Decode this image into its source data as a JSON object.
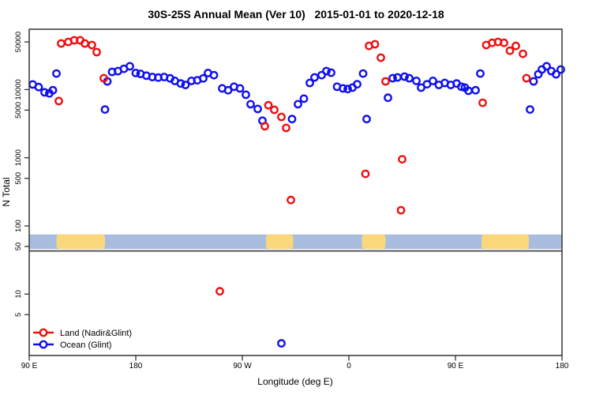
{
  "title": "30S-25S Annual Mean (Ver 10)   2015-01-01 to 2020-12-18",
  "chart_data": {
    "type": "scatter",
    "title": "30S-25S Annual Mean (Ver 10)   2015-01-01 to 2020-12-18",
    "xlabel": "Longitude (deg E)",
    "ylabel": "N Total",
    "y_scale": "log10",
    "ylim": [
      1.3,
      76000
    ],
    "grid": false,
    "legend_position": "bottom-left",
    "x_axis_span_deg": 450,
    "x_axis_note": "longitude axis wraps: 90E → 180 → 90W → 0 → 90E → 180",
    "x_ticks": [
      {
        "pos": 0,
        "label": "90 E"
      },
      {
        "pos": 90,
        "label": "180"
      },
      {
        "pos": 180,
        "label": "90 W"
      },
      {
        "pos": 270,
        "label": "0"
      },
      {
        "pos": 360,
        "label": "90 E"
      },
      {
        "pos": 450,
        "label": "180"
      }
    ],
    "y_ticks": [
      {
        "value": 50000,
        "label": "50000"
      },
      {
        "value": 10000,
        "label": "10000"
      },
      {
        "value": 5000,
        "label": "5000"
      },
      {
        "value": 1000,
        "label": "1000"
      },
      {
        "value": 500,
        "label": "500"
      },
      {
        "value": 100,
        "label": "100"
      },
      {
        "value": 50,
        "label": "50"
      },
      {
        "value": 10,
        "label": "10"
      },
      {
        "value": 5,
        "label": "5"
      }
    ],
    "legend": [
      {
        "label": "Land (Nadir&Glint)",
        "color": "#ee1111"
      },
      {
        "label": "Ocean (Glint)",
        "color": "#1111ee"
      }
    ],
    "map_strip": {
      "value_range": [
        46,
        75
      ],
      "ocean_color": "#a8bdde",
      "land_color": "#fbd77c",
      "land_segments_deg": [
        [
          23,
          64
        ],
        [
          200,
          223
        ],
        [
          281,
          301
        ],
        [
          382,
          422
        ]
      ],
      "land_segment_names": [
        "Australia",
        "South America",
        "Africa",
        "Australia (repeat)"
      ]
    },
    "divider_value": 43,
    "series": [
      {
        "name": "Ocean (Glint)",
        "color": "#1111ee",
        "points": [
          [
            3,
            11900
          ],
          [
            8,
            10900
          ],
          [
            13,
            9100
          ],
          [
            17,
            8800
          ],
          [
            20,
            9800
          ],
          [
            23,
            17200
          ],
          [
            64,
            5100
          ],
          [
            66,
            13200
          ],
          [
            70,
            18200
          ],
          [
            75,
            18700
          ],
          [
            80,
            20200
          ],
          [
            85,
            22000
          ],
          [
            90,
            17500
          ],
          [
            94,
            17000
          ],
          [
            99,
            16000
          ],
          [
            104,
            15300
          ],
          [
            109,
            15000
          ],
          [
            114,
            15300
          ],
          [
            119,
            14600
          ],
          [
            123,
            13400
          ],
          [
            128,
            12300
          ],
          [
            132,
            11700
          ],
          [
            137,
            13400
          ],
          [
            142,
            13700
          ],
          [
            147,
            14600
          ],
          [
            151,
            17500
          ],
          [
            156,
            16300
          ],
          [
            163,
            10400
          ],
          [
            168,
            9800
          ],
          [
            173,
            11000
          ],
          [
            178,
            10400
          ],
          [
            183,
            8400
          ],
          [
            187,
            6100
          ],
          [
            193,
            5200
          ],
          [
            197,
            3500
          ],
          [
            213,
            1.9
          ],
          [
            222,
            3700
          ],
          [
            227,
            6100
          ],
          [
            232,
            7350
          ],
          [
            237,
            12500
          ],
          [
            241,
            15100
          ],
          [
            247,
            16300
          ],
          [
            251,
            18700
          ],
          [
            255,
            17700
          ],
          [
            260,
            11000
          ],
          [
            265,
            10400
          ],
          [
            269,
            10200
          ],
          [
            273,
            10700
          ],
          [
            277,
            12000
          ],
          [
            282,
            17200
          ],
          [
            285,
            3700
          ],
          [
            303,
            7600
          ],
          [
            307,
            14700
          ],
          [
            311,
            15100
          ],
          [
            317,
            15500
          ],
          [
            321,
            14700
          ],
          [
            327,
            13400
          ],
          [
            331,
            10700
          ],
          [
            336,
            12000
          ],
          [
            341,
            13400
          ],
          [
            346,
            11700
          ],
          [
            351,
            12500
          ],
          [
            356,
            11700
          ],
          [
            361,
            12300
          ],
          [
            365,
            11000
          ],
          [
            368,
            10700
          ],
          [
            371,
            9600
          ],
          [
            377,
            9800
          ],
          [
            381,
            17200
          ],
          [
            423,
            5100
          ],
          [
            426,
            13200
          ],
          [
            430,
            16800
          ],
          [
            433,
            19700
          ],
          [
            437,
            22000
          ],
          [
            441,
            18700
          ],
          [
            445,
            16800
          ],
          [
            449,
            19700
          ]
        ]
      },
      {
        "name": "Land (Nadir&Glint)",
        "color": "#ee1111",
        "points": [
          [
            25,
            6800
          ],
          [
            27,
            47500
          ],
          [
            33,
            50000
          ],
          [
            38,
            52800
          ],
          [
            43,
            52800
          ],
          [
            47,
            47500
          ],
          [
            53,
            45000
          ],
          [
            57,
            35400
          ],
          [
            63,
            14700
          ],
          [
            161,
            11
          ],
          [
            199,
            2900
          ],
          [
            202,
            5900
          ],
          [
            207,
            5050
          ],
          [
            213,
            3970
          ],
          [
            217,
            2740
          ],
          [
            221,
            240
          ],
          [
            284,
            580
          ],
          [
            287,
            43800
          ],
          [
            292,
            46300
          ],
          [
            297,
            29400
          ],
          [
            301,
            13200
          ],
          [
            314,
            170
          ],
          [
            315,
            950
          ],
          [
            383,
            6400
          ],
          [
            386,
            45000
          ],
          [
            391,
            48600
          ],
          [
            396,
            50000
          ],
          [
            401,
            48600
          ],
          [
            406,
            37200
          ],
          [
            411,
            43800
          ],
          [
            417,
            33500
          ],
          [
            420,
            14700
          ]
        ]
      }
    ]
  }
}
